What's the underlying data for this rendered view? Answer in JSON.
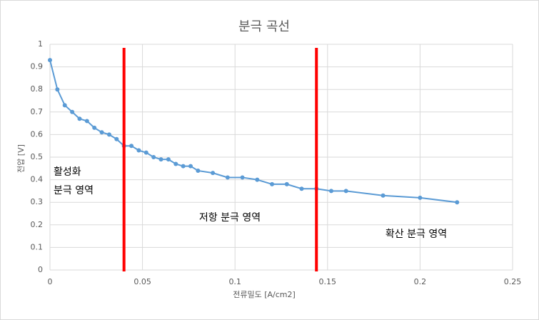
{
  "chart_data": {
    "type": "line",
    "title": "분극 곡선",
    "x_label": "전류밀도 [A/cm2]",
    "y_label": "전압 [V]",
    "x": [
      0,
      0.004,
      0.008,
      0.012,
      0.016,
      0.02,
      0.024,
      0.028,
      0.032,
      0.036,
      0.04,
      0.044,
      0.048,
      0.052,
      0.056,
      0.06,
      0.064,
      0.068,
      0.072,
      0.076,
      0.08,
      0.088,
      0.096,
      0.104,
      0.112,
      0.12,
      0.128,
      0.136,
      0.144,
      0.152,
      0.16,
      0.18,
      0.2,
      0.22
    ],
    "series": [
      {
        "name": "전압",
        "color": "#5b9bd5",
        "values": [
          0.93,
          0.8,
          0.73,
          0.7,
          0.67,
          0.66,
          0.63,
          0.61,
          0.6,
          0.58,
          0.55,
          0.55,
          0.53,
          0.52,
          0.5,
          0.49,
          0.49,
          0.47,
          0.46,
          0.46,
          0.44,
          0.43,
          0.41,
          0.41,
          0.4,
          0.38,
          0.38,
          0.36,
          0.36,
          0.35,
          0.35,
          0.33,
          0.32,
          0.3
        ]
      }
    ],
    "xlim": [
      0,
      0.25
    ],
    "xticks": [
      0,
      0.05,
      0.1,
      0.15,
      0.2,
      0.25
    ],
    "ylim": [
      0,
      1
    ],
    "yticks": [
      0,
      0.1,
      0.2,
      0.3,
      0.4,
      0.5,
      0.6,
      0.7,
      0.8,
      0.9,
      1
    ],
    "grid": true,
    "vlines": {
      "color": "#ff0000",
      "x": [
        0.04,
        0.144
      ]
    },
    "annotations": [
      "활성화",
      "분극 영역",
      "저항 분극 영역",
      "확산 분극 영역"
    ]
  }
}
